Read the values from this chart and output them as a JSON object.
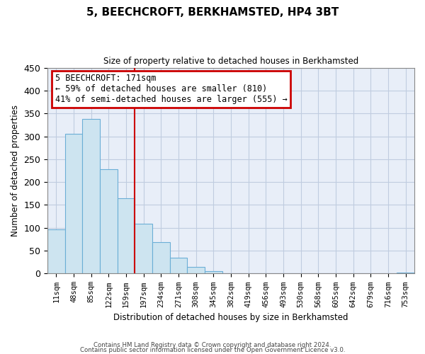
{
  "title": "5, BEECHCROFT, BERKHAMSTED, HP4 3BT",
  "subtitle": "Size of property relative to detached houses in Berkhamsted",
  "xlabel": "Distribution of detached houses by size in Berkhamsted",
  "ylabel": "Number of detached properties",
  "bar_labels": [
    "11sqm",
    "48sqm",
    "85sqm",
    "122sqm",
    "159sqm",
    "197sqm",
    "234sqm",
    "271sqm",
    "308sqm",
    "345sqm",
    "382sqm",
    "419sqm",
    "456sqm",
    "493sqm",
    "530sqm",
    "568sqm",
    "605sqm",
    "642sqm",
    "679sqm",
    "716sqm",
    "753sqm"
  ],
  "bar_values": [
    97,
    305,
    338,
    228,
    165,
    109,
    69,
    35,
    14,
    5,
    1,
    0,
    0,
    0,
    0,
    0,
    0,
    0,
    0,
    0,
    2
  ],
  "bar_color": "#cde4f0",
  "bar_edgecolor": "#6baed6",
  "vline_x_index": 4,
  "vline_color": "#cc0000",
  "ylim": [
    0,
    450
  ],
  "yticks": [
    0,
    50,
    100,
    150,
    200,
    250,
    300,
    350,
    400,
    450
  ],
  "annotation_title": "5 BEECHCROFT: 171sqm",
  "annotation_line1": "← 59% of detached houses are smaller (810)",
  "annotation_line2": "41% of semi-detached houses are larger (555) →",
  "annotation_box_color": "#ffffff",
  "annotation_box_edgecolor": "#cc0000",
  "footer1": "Contains HM Land Registry data © Crown copyright and database right 2024.",
  "footer2": "Contains public sector information licensed under the Open Government Licence v3.0.",
  "bg_color": "#ffffff",
  "plot_bg_color": "#e8eef8",
  "grid_color": "#c0cce0"
}
